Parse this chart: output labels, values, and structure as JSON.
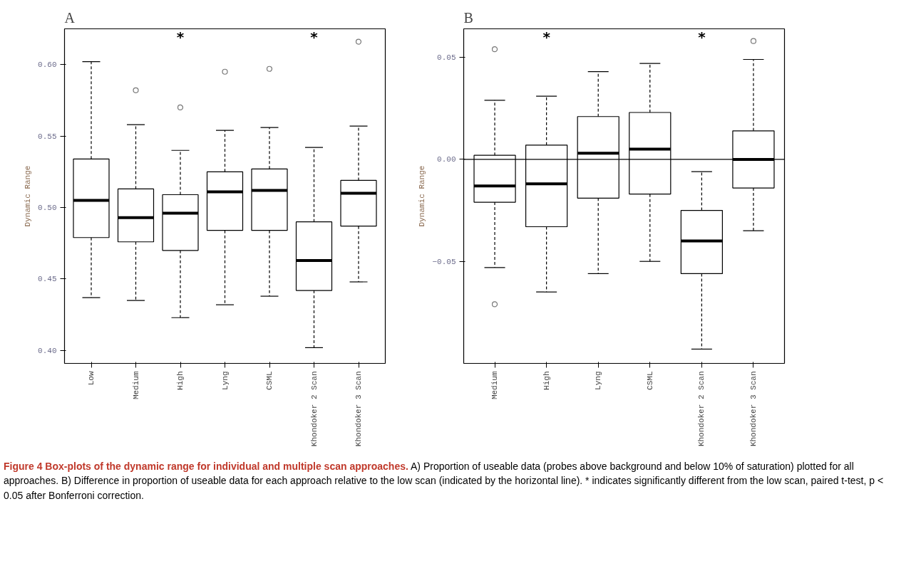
{
  "chart_data": [
    {
      "type": "box",
      "title": "A",
      "ylabel": "Dynamic Range",
      "categories": [
        "Low",
        "Medium",
        "High",
        "Lyng",
        "CSML",
        "Khondoker 2 Scan",
        "Khondoker 3 Scan"
      ],
      "boxes": [
        {
          "low": 0.437,
          "q1": 0.479,
          "median": 0.505,
          "q3": 0.534,
          "high": 0.602
        },
        {
          "low": 0.435,
          "q1": 0.476,
          "median": 0.493,
          "q3": 0.513,
          "high": 0.558,
          "outliers": [
            0.582
          ]
        },
        {
          "low": 0.423,
          "q1": 0.47,
          "median": 0.496,
          "q3": 0.509,
          "high": 0.54,
          "outliers": [
            0.57
          ]
        },
        {
          "low": 0.432,
          "q1": 0.484,
          "median": 0.511,
          "q3": 0.525,
          "high": 0.554,
          "outliers": [
            0.595
          ]
        },
        {
          "low": 0.438,
          "q1": 0.484,
          "median": 0.512,
          "q3": 0.527,
          "high": 0.556,
          "outliers": [
            0.597
          ]
        },
        {
          "low": 0.402,
          "q1": 0.442,
          "median": 0.463,
          "q3": 0.49,
          "high": 0.542
        },
        {
          "low": 0.448,
          "q1": 0.487,
          "median": 0.51,
          "q3": 0.519,
          "high": 0.557,
          "outliers": [
            0.616
          ]
        }
      ],
      "ylim": [
        0.391,
        0.625
      ],
      "yticks": [
        {
          "value": 0.4,
          "label": "0.40"
        },
        0.45,
        {
          "value": 0.5,
          "label": "0.50"
        },
        0.55,
        {
          "value": 0.6,
          "label": "0.60"
        }
      ],
      "annotations": [
        "*",
        "*"
      ]
    },
    {
      "type": "box",
      "title": "B",
      "ylabel": "Dynamic Range",
      "categories": [
        "Medium",
        "High",
        "Lyng",
        "CSML",
        "Khondoker 2 Scan",
        "Khondoker 3 Scan"
      ],
      "boxes": [
        {
          "low": -0.053,
          "q1": -0.021,
          "median": -0.013,
          "q3": 0.002,
          "high": 0.029,
          "outliers": [
            0.054,
            -0.071
          ]
        },
        {
          "low": -0.065,
          "q1": -0.033,
          "median": -0.012,
          "q3": 0.007,
          "high": 0.031
        },
        {
          "low": -0.056,
          "q1": -0.019,
          "median": 0.003,
          "q3": 0.021,
          "high": 0.043
        },
        {
          "low": -0.05,
          "q1": -0.017,
          "median": 0.005,
          "q3": 0.023,
          "high": 0.047
        },
        {
          "low": -0.093,
          "q1": -0.056,
          "median": -0.04,
          "q3": -0.025,
          "high": -0.006
        },
        {
          "low": -0.035,
          "q1": -0.014,
          "median": 0.0,
          "q3": 0.014,
          "high": 0.049,
          "outliers": [
            0.058
          ]
        }
      ],
      "ylim": [
        -0.1,
        0.064
      ],
      "yticks": [
        -0.05,
        {
          "value": 0,
          "label": "0.00"
        },
        0.05
      ],
      "ref_lines": [
        {
          "axis": "y",
          "value": 0
        }
      ],
      "annotations": [
        "*",
        "*"
      ]
    },
    {
      "type": "other",
      "title": "Figure 4 Box-plots of the dynamic range for individual and multiple scan approaches.",
      "annotations": [
        "A) Proportion of useable data (probes above background and below 10% of saturation) plotted for all approaches. B) Difference in proportion of useable data for each approach relative to the low scan (indicated by the horizontal line). * indicates significantly different from the low scan, paired t-test, p < 0.05 after Bonferroni correction."
      ]
    }
  ]
}
